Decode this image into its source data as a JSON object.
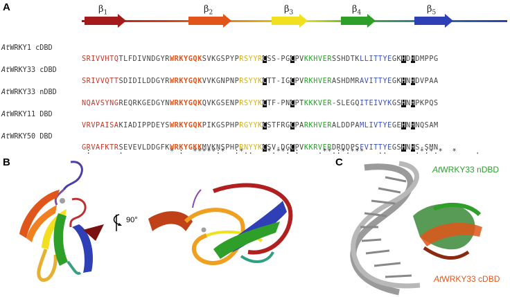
{
  "panels": {
    "a": "A",
    "b": "B",
    "c": "C"
  },
  "strands": [
    {
      "label": "β",
      "sub": "1",
      "color": "#b02020"
    },
    {
      "label": "β",
      "sub": "2",
      "color": "#e0561a"
    },
    {
      "label": "β",
      "sub": "3",
      "color": "#e6d21a"
    },
    {
      "label": "β",
      "sub": "4",
      "color": "#2ca02c"
    },
    {
      "label": "β",
      "sub": "5",
      "color": "#3044b0"
    }
  ],
  "sequences": [
    {
      "name_it": "At",
      "name": "WRKY1 cDBD",
      "segments": [
        {
          "t": "SRIVVHTQ",
          "c": "red"
        },
        {
          "t": "TLFDIVNDGYR",
          "c": "gray"
        },
        {
          "t": "WRKYGQK",
          "c": "orange"
        },
        {
          "t": "SVKGSPYP",
          "c": "gray"
        },
        {
          "t": "RSYYR",
          "c": "yellow"
        },
        {
          "t": "C",
          "c": "hl"
        },
        {
          "t": "SS-PG",
          "c": "gray"
        },
        {
          "t": "C",
          "c": "hl"
        },
        {
          "t": "PV",
          "c": "gray"
        },
        {
          "t": "KKHVER",
          "c": "green"
        },
        {
          "t": "SSHDTK",
          "c": "gray"
        },
        {
          "t": "LLITTYE",
          "c": "blue"
        },
        {
          "t": "GK",
          "c": "gray"
        },
        {
          "t": "H",
          "c": "hl"
        },
        {
          "t": "D",
          "c": "gray"
        },
        {
          "t": "H",
          "c": "hl"
        },
        {
          "t": "DMPPG",
          "c": "gray"
        }
      ]
    },
    {
      "name_it": "At",
      "name": "WRKY33 cDBD",
      "segments": [
        {
          "t": "SRIVVQTT",
          "c": "red"
        },
        {
          "t": "SDIDILDDGYR",
          "c": "gray"
        },
        {
          "t": "WRKYGQK",
          "c": "orange"
        },
        {
          "t": "VVKGNPNP",
          "c": "gray"
        },
        {
          "t": "RSYYK",
          "c": "yellow"
        },
        {
          "t": "C",
          "c": "hl"
        },
        {
          "t": "TT-IG",
          "c": "gray"
        },
        {
          "t": "C",
          "c": "hl"
        },
        {
          "t": "PV",
          "c": "gray"
        },
        {
          "t": "RKHVER",
          "c": "green"
        },
        {
          "t": "ASHDMR",
          "c": "gray"
        },
        {
          "t": "AVITTYE",
          "c": "blue"
        },
        {
          "t": "GK",
          "c": "gray"
        },
        {
          "t": "H",
          "c": "hl"
        },
        {
          "t": "N",
          "c": "gray"
        },
        {
          "t": "H",
          "c": "hl"
        },
        {
          "t": "DVPAA",
          "c": "gray"
        }
      ]
    },
    {
      "name_it": "At",
      "name": "WRKY33 nDBD",
      "segments": [
        {
          "t": "NQAVSYNG",
          "c": "red"
        },
        {
          "t": "REQRKGEDGYN",
          "c": "gray"
        },
        {
          "t": "WRKYGQK",
          "c": "orange"
        },
        {
          "t": "QVKGSENP",
          "c": "gray"
        },
        {
          "t": "RSYYK",
          "c": "yellow"
        },
        {
          "t": "C",
          "c": "hl"
        },
        {
          "t": "TF-PN",
          "c": "gray"
        },
        {
          "t": "C",
          "c": "hl"
        },
        {
          "t": "PT",
          "c": "gray"
        },
        {
          "t": "KKKVER",
          "c": "green"
        },
        {
          "t": "-SLEGQ",
          "c": "gray"
        },
        {
          "t": "ITEIVYK",
          "c": "blue"
        },
        {
          "t": "GS",
          "c": "gray"
        },
        {
          "t": "H",
          "c": "hl"
        },
        {
          "t": "N",
          "c": "gray"
        },
        {
          "t": "H",
          "c": "hl"
        },
        {
          "t": "PKPQS",
          "c": "gray"
        }
      ]
    },
    {
      "name_it": "At",
      "name": "WRKY11 DBD",
      "segments": [
        {
          "t": "VRVPAISA",
          "c": "red"
        },
        {
          "t": "KIADIPPDEYS",
          "c": "gray"
        },
        {
          "t": "WRKYGQK",
          "c": "orange"
        },
        {
          "t": "PIKGSPHP",
          "c": "gray"
        },
        {
          "t": "RGYYK",
          "c": "yellow"
        },
        {
          "t": "C",
          "c": "hl"
        },
        {
          "t": "STFRG",
          "c": "gray"
        },
        {
          "t": "C",
          "c": "hl"
        },
        {
          "t": "PA",
          "c": "gray"
        },
        {
          "t": "RKHVER",
          "c": "green"
        },
        {
          "t": "ALDDPA",
          "c": "gray"
        },
        {
          "t": "MLIVTYE",
          "c": "blue"
        },
        {
          "t": "GE",
          "c": "gray"
        },
        {
          "t": "H",
          "c": "hl"
        },
        {
          "t": "N",
          "c": "gray"
        },
        {
          "t": "H",
          "c": "hl"
        },
        {
          "t": "NQSAM",
          "c": "gray"
        }
      ]
    },
    {
      "name_it": "At",
      "name": "WRKY50 DBD",
      "segments": [
        {
          "t": "GRVAFKTR",
          "c": "red"
        },
        {
          "t": "SEVEVLDDGFK",
          "c": "gray"
        },
        {
          "t": "WRKYGKK",
          "c": "orange"
        },
        {
          "t": "MVKNSPHP",
          "c": "gray"
        },
        {
          "t": "RNYYK",
          "c": "yellow"
        },
        {
          "t": "C",
          "c": "hl"
        },
        {
          "t": "SV-DG",
          "c": "gray"
        },
        {
          "t": "C",
          "c": "hl"
        },
        {
          "t": "PV",
          "c": "gray"
        },
        {
          "t": "KKRVER",
          "c": "green"
        },
        {
          "t": "DRDDPS",
          "c": "gray"
        },
        {
          "t": "FVITTYE",
          "c": "blue"
        },
        {
          "t": "GS",
          "c": "gray"
        },
        {
          "t": "H",
          "c": "hl"
        },
        {
          "t": "N",
          "c": "gray"
        },
        {
          "t": "H",
          "c": "hl"
        },
        {
          "t": "S-SMN",
          "c": "gray"
        }
      ]
    }
  ],
  "consensus": " :      .          * :  *****:*  :*..  **.**:*:    .**.:*:***   ..      .*:*.*  *    .",
  "rotation_label": "90°",
  "complex_labels": {
    "ndbd_it": "At",
    "ndbd": "WRKY33 nDBD",
    "ndbd_color": "#2ca02c",
    "cdbd_it": "At",
    "cdbd": "WRKY33 cDBD",
    "cdbd_color": "#e0561a"
  }
}
